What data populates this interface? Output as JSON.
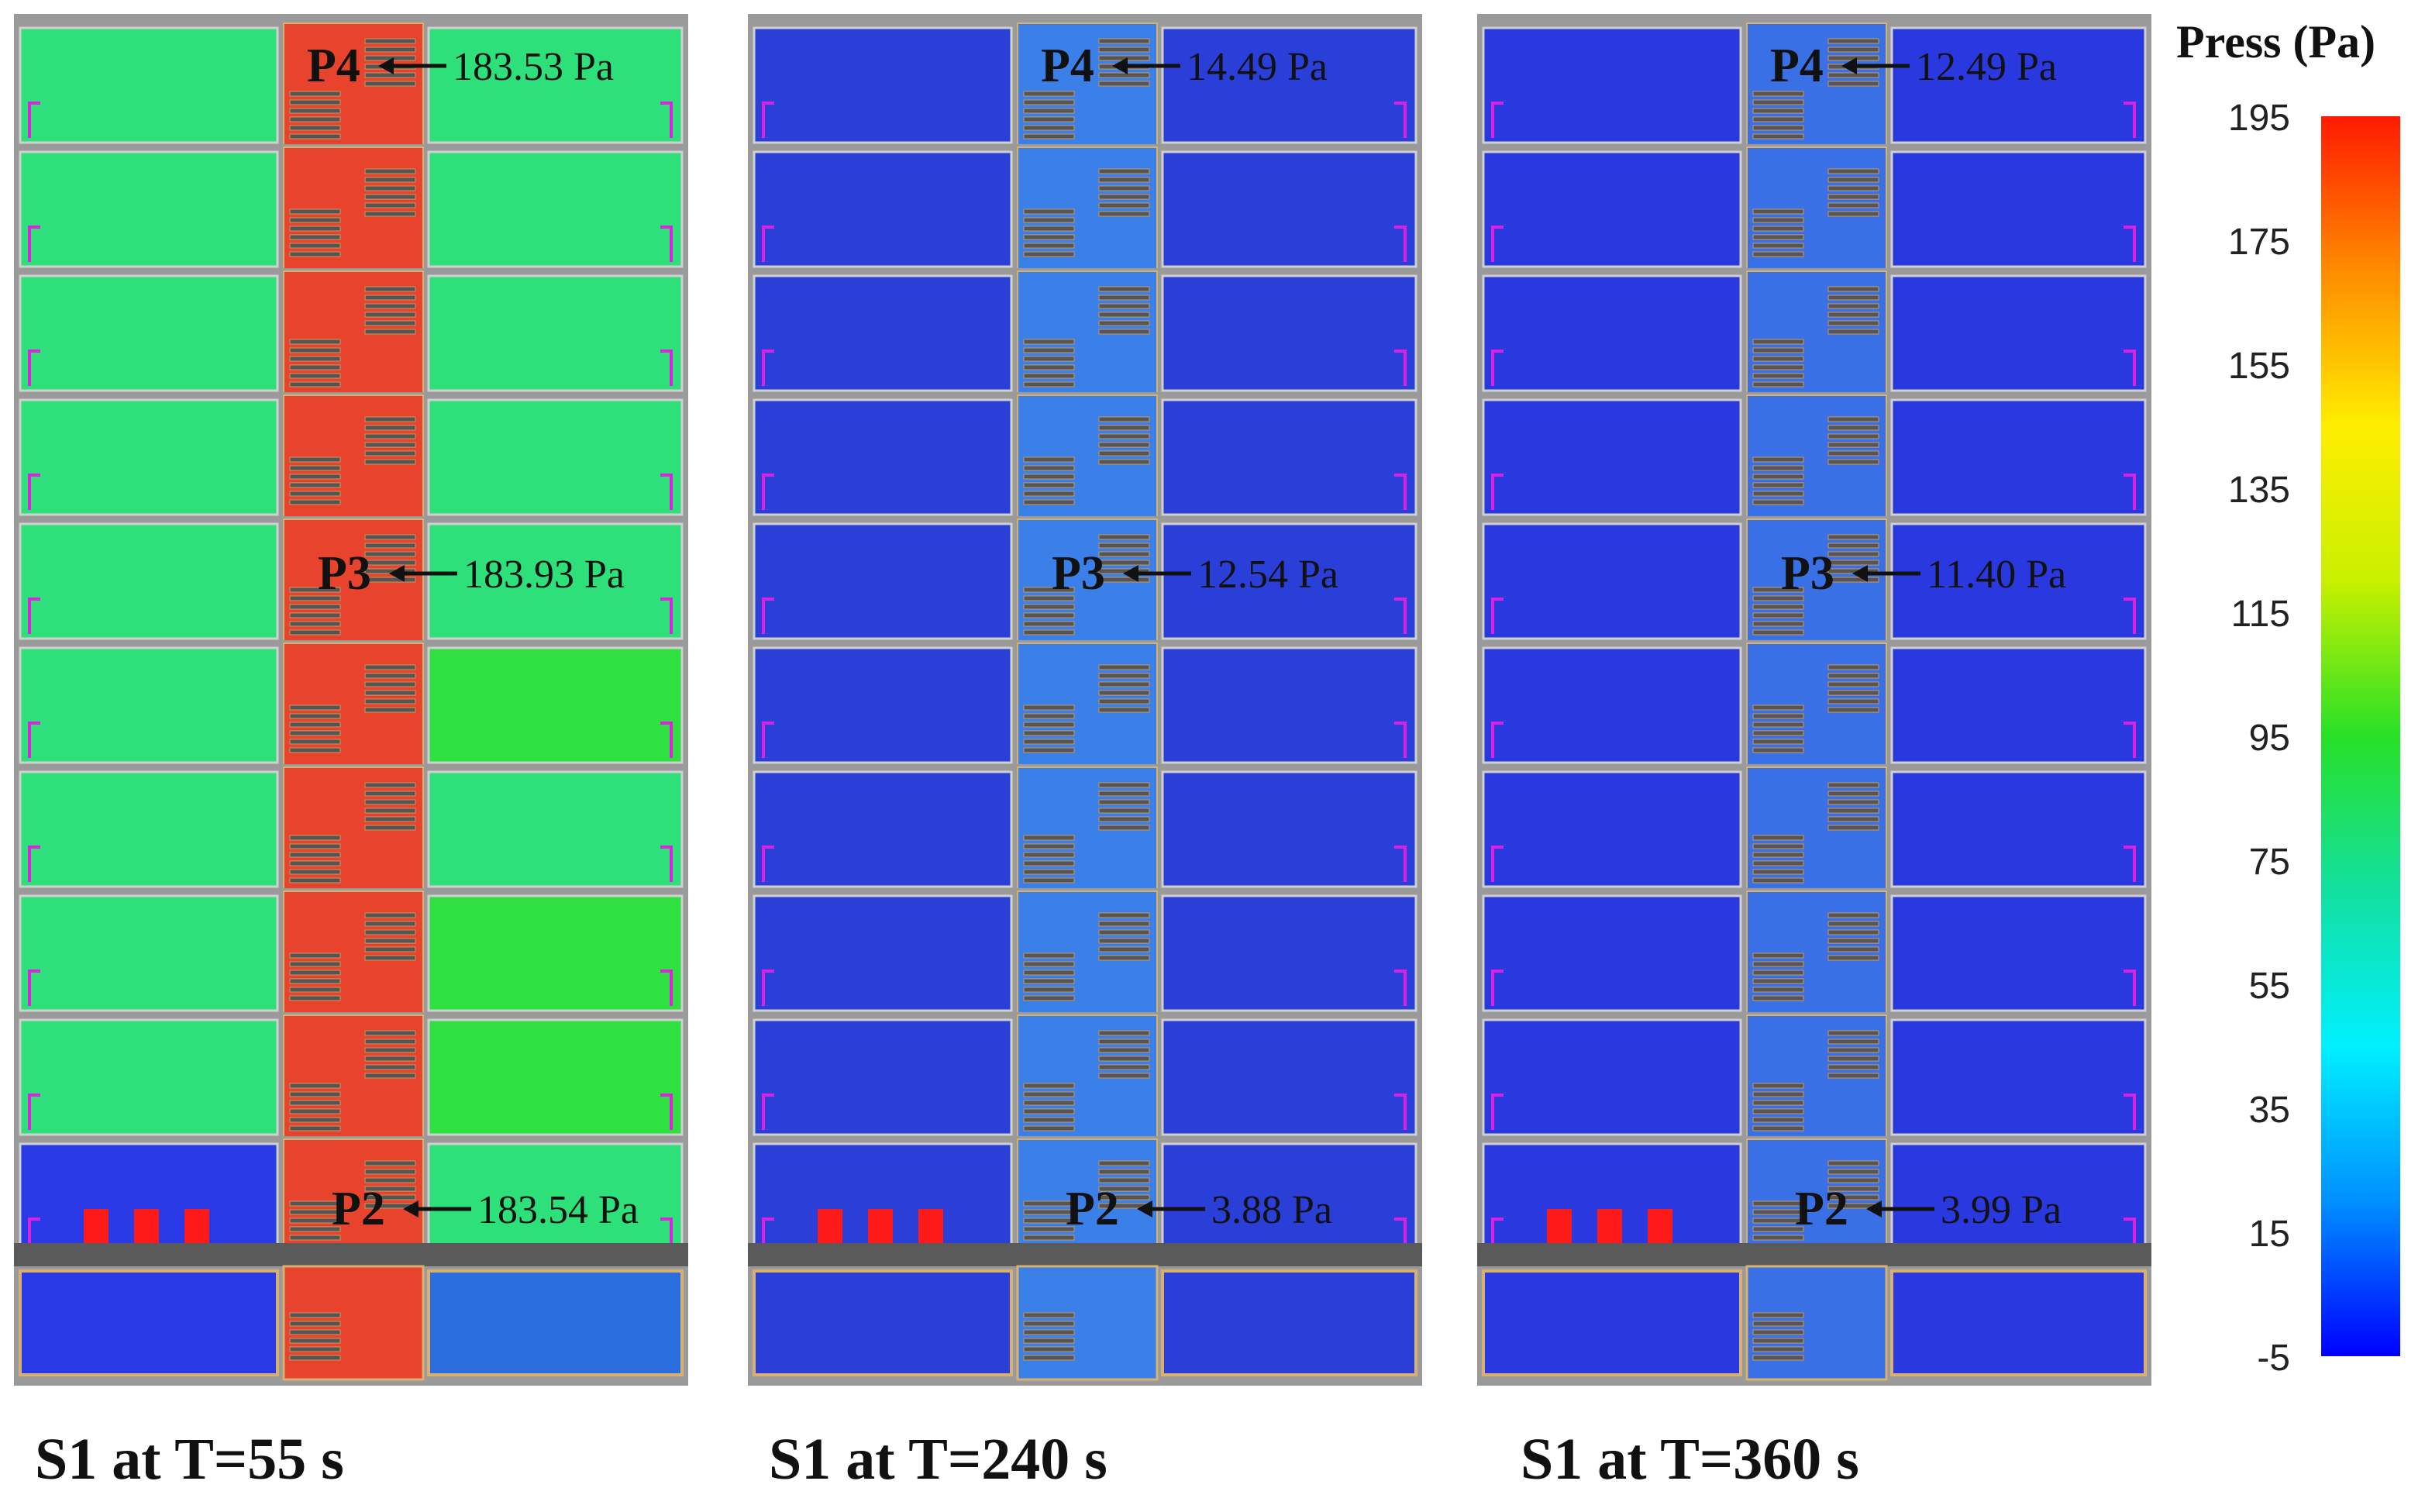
{
  "legend": {
    "title": "Press (Pa)",
    "ticks": [
      "195",
      "175",
      "155",
      "135",
      "115",
      "95",
      "75",
      "55",
      "35",
      "15",
      "-5"
    ],
    "stops": [
      "#ff1a00",
      "#ff8c00",
      "#ffee00",
      "#c8f000",
      "#28e028",
      "#12e0a0",
      "#00f0ff",
      "#0090ff",
      "#0000ff"
    ]
  },
  "panels": [
    {
      "caption": "S1 at T=55 s",
      "colors": {
        "left": "#2ee07a",
        "shaft": "#e8432c",
        "right": "#2ee07a",
        "right_alt": "#2ee040",
        "fire_floor": "#2a3ae6",
        "basement_right": "#2a6ee0",
        "basement_left": "#2a3ae6"
      },
      "probes": [
        {
          "name": "P4",
          "value": "183.53 Pa"
        },
        {
          "name": "P3",
          "value": "183.93 Pa"
        },
        {
          "name": "P2",
          "value": "183.54 Pa"
        }
      ]
    },
    {
      "caption": "S1 at T=240 s",
      "colors": {
        "left": "#2a3ed8",
        "shaft": "#3a80e8",
        "right": "#2a3ed8",
        "right_alt": "#2a3ed8",
        "fire_floor": "#2a3ed8",
        "basement_right": "#2a3ed8",
        "basement_left": "#2a3ed8"
      },
      "probes": [
        {
          "name": "P4",
          "value": "14.49 Pa"
        },
        {
          "name": "P3",
          "value": "12.54 Pa"
        },
        {
          "name": "P2",
          "value": "3.88 Pa"
        }
      ]
    },
    {
      "caption": "S1 at T=360 s",
      "colors": {
        "left": "#2a38e0",
        "shaft": "#3a70e6",
        "right": "#2a38e0",
        "right_alt": "#2a38e0",
        "fire_floor": "#2a38e0",
        "basement_right": "#2a38e0",
        "basement_left": "#2a38e0"
      },
      "probes": [
        {
          "name": "P4",
          "value": "12.49 Pa"
        },
        {
          "name": "P3",
          "value": "11.40 Pa"
        },
        {
          "name": "P2",
          "value": "3.99 Pa"
        }
      ]
    }
  ]
}
